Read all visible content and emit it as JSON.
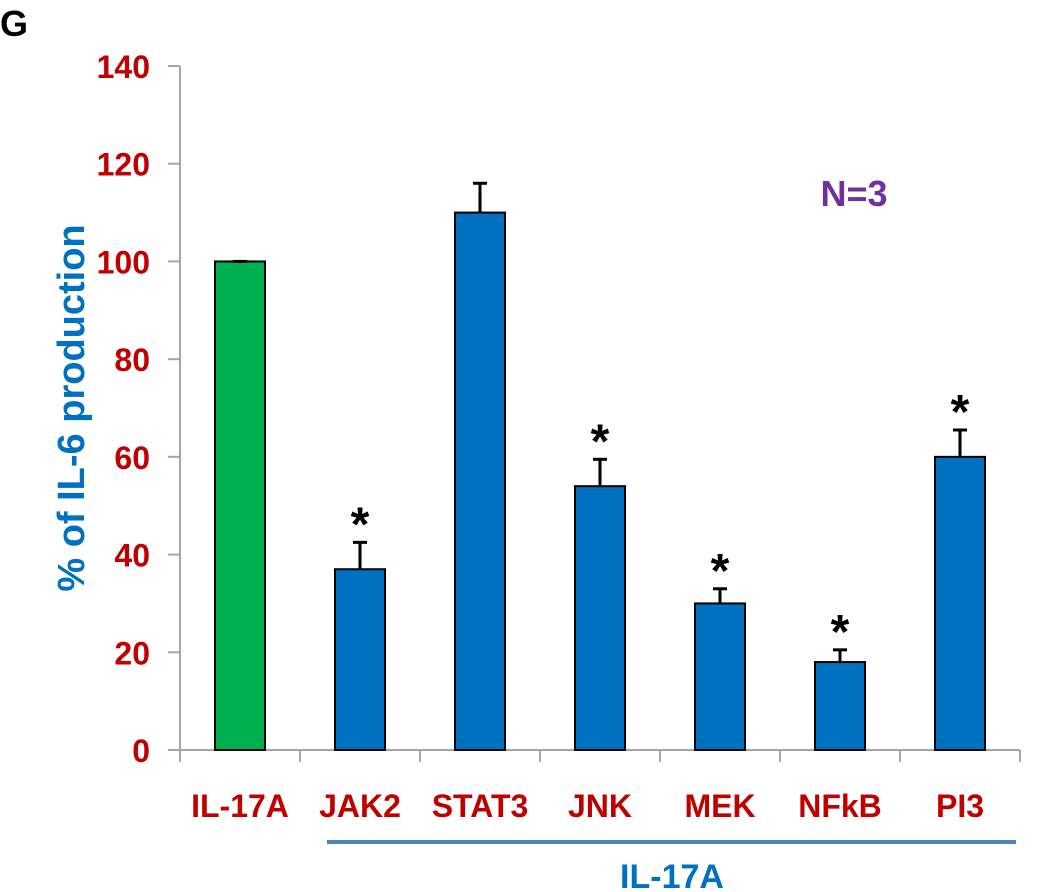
{
  "panel_label": "G",
  "annotation": "N=3",
  "group_label": "IL-17A",
  "colors": {
    "control": "#00b050",
    "treatment": "#0070c0",
    "tick_label": "#c00000",
    "ylabel": "#0070c0",
    "annotation": "#7030a0",
    "group_line": "#4f81bd",
    "axis": "#a6a6a6"
  },
  "chart_data": {
    "type": "bar",
    "ylabel": "% of IL-6 production",
    "xlabel": "",
    "ylim": [
      0,
      140
    ],
    "yticks": [
      0,
      20,
      40,
      60,
      80,
      100,
      120,
      140
    ],
    "grid": false,
    "categories": [
      "IL-17A",
      "JAK2",
      "STAT3",
      "JNK",
      "MEK",
      "NFkB",
      "PI3"
    ],
    "values": [
      100,
      37,
      110,
      54,
      30,
      18,
      60
    ],
    "errors": [
      0,
      5.5,
      6,
      5.5,
      3,
      2.5,
      5.5
    ],
    "significant": [
      false,
      true,
      false,
      true,
      true,
      true,
      true
    ],
    "significance_marker": "*",
    "bar_colors": [
      "control",
      "treatment",
      "treatment",
      "treatment",
      "treatment",
      "treatment",
      "treatment"
    ]
  }
}
